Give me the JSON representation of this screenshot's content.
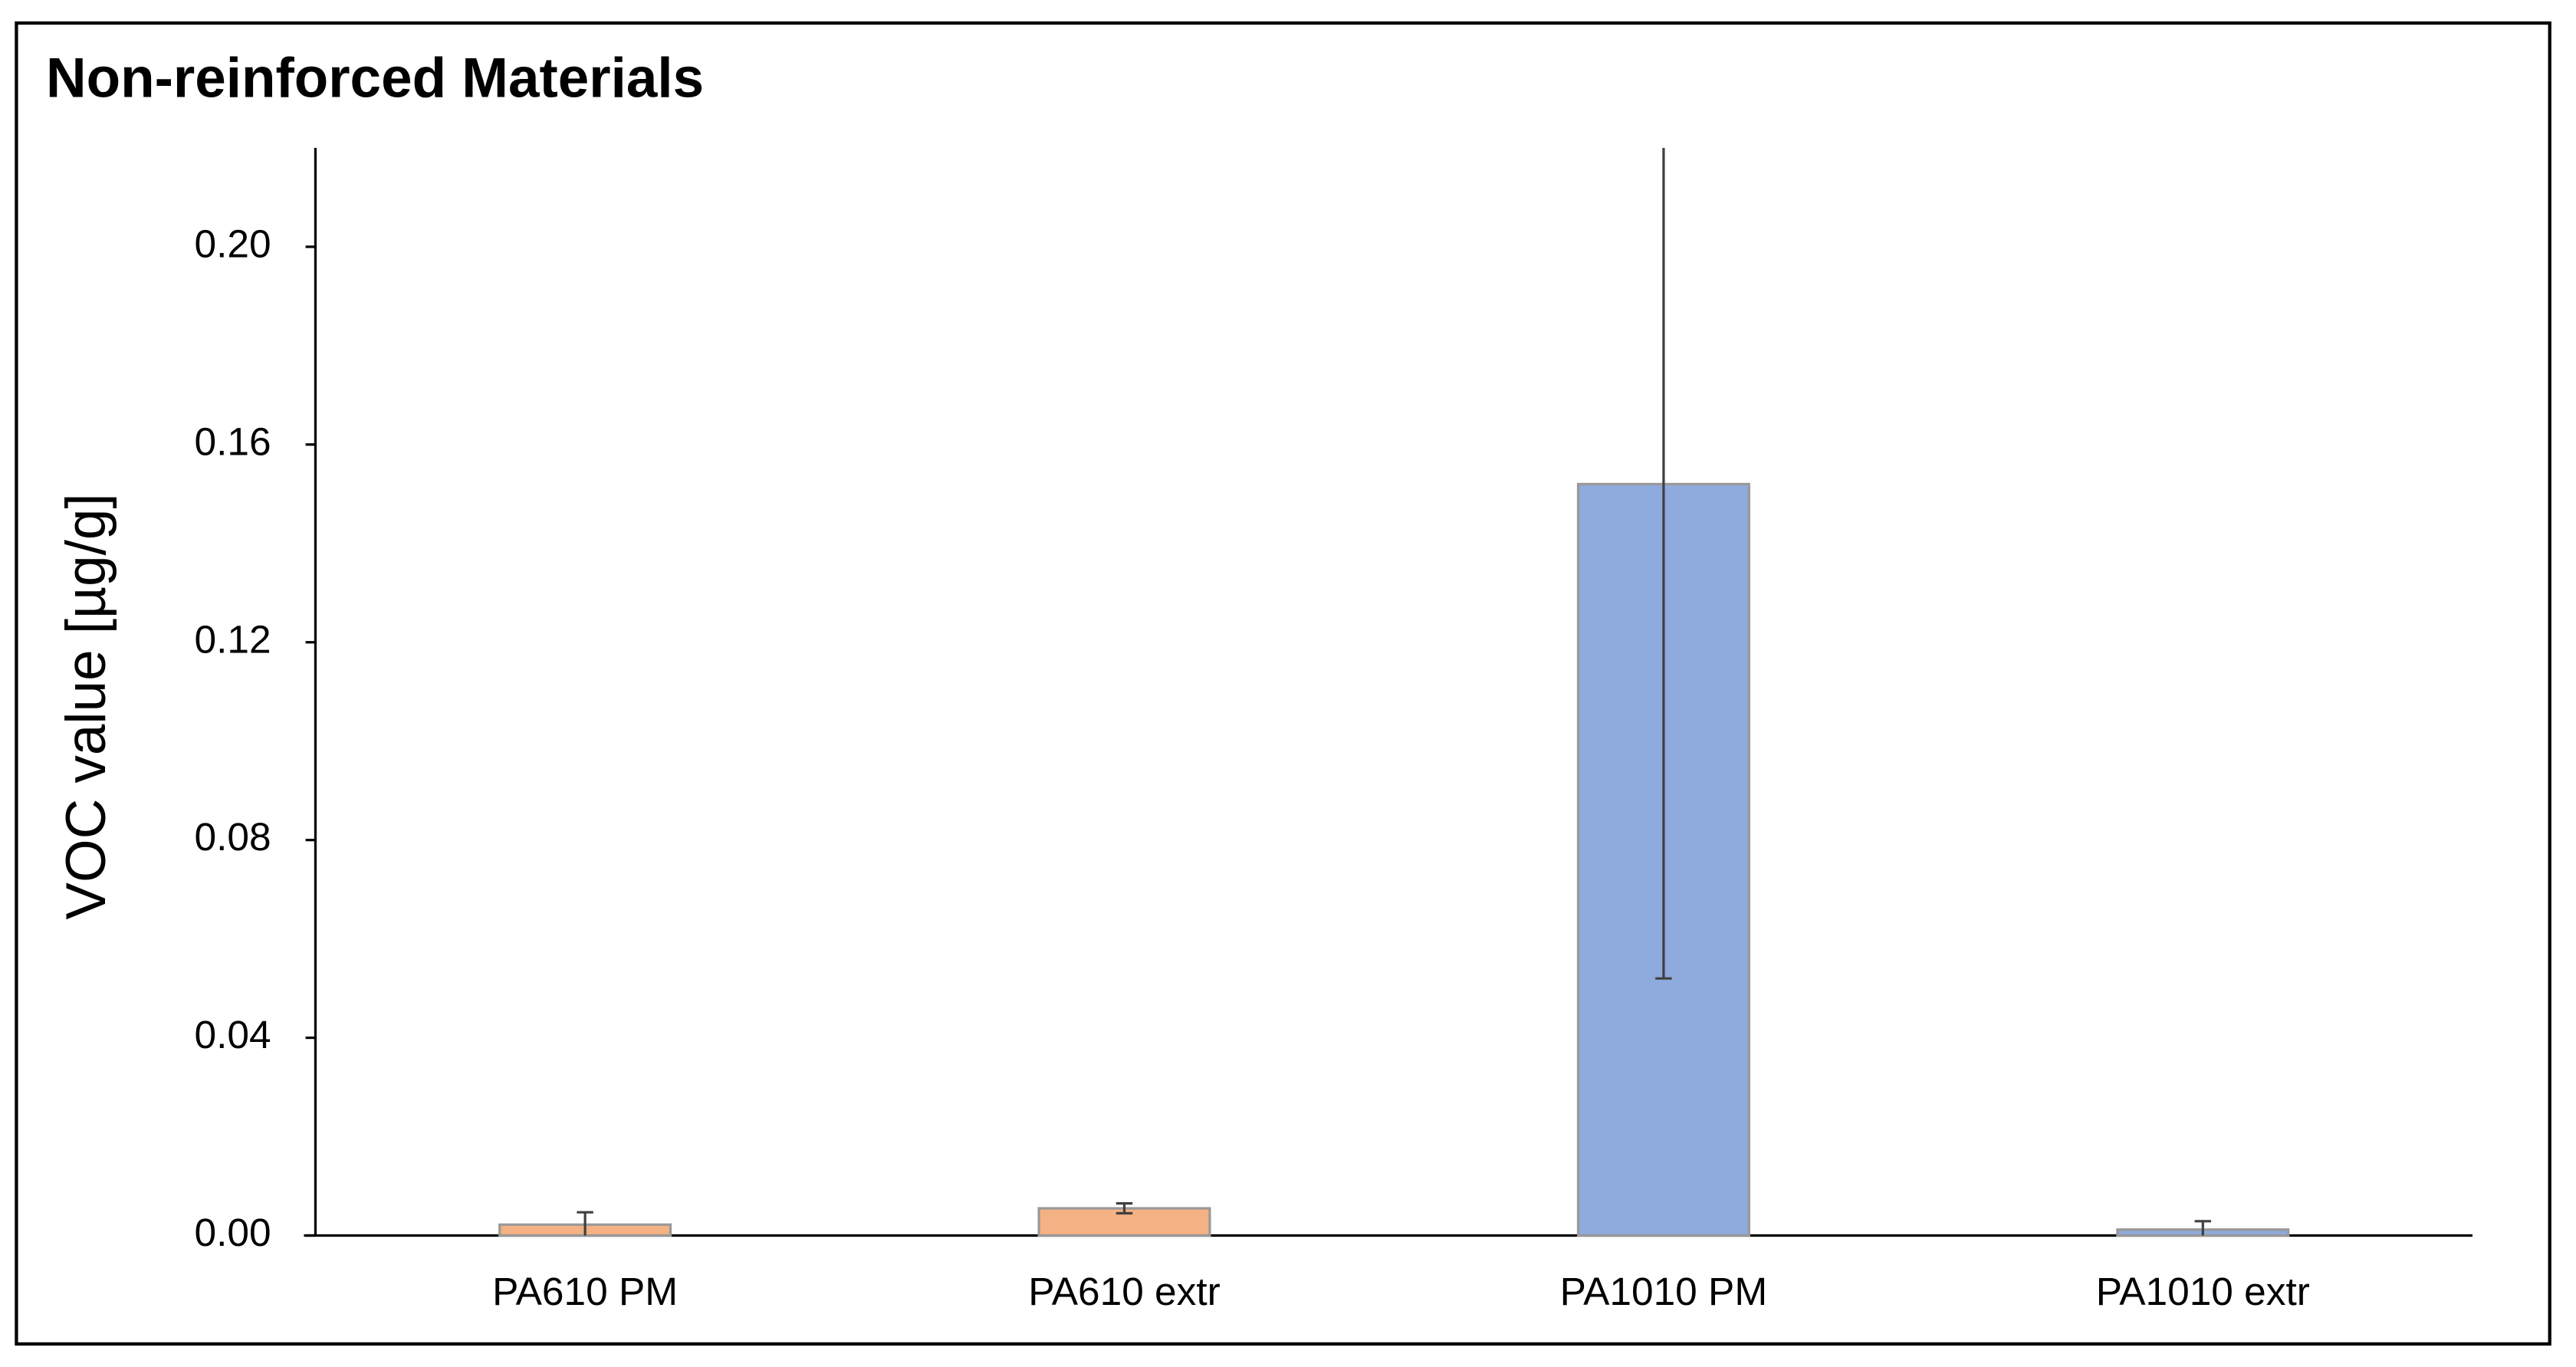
{
  "chart_data": {
    "type": "bar",
    "title": "Non-reinforced Materials",
    "y_label": "VOC value  [µg/g]",
    "categories": [
      "PA610 PM",
      "PA610 extr",
      "PA1010 PM",
      "PA1010 extr"
    ],
    "values": [
      0.0022,
      0.0055,
      0.152,
      0.0012
    ],
    "errors": [
      0.0025,
      0.001,
      0.1,
      0.0017
    ],
    "colors": [
      "#f4b183",
      "#f4b183",
      "#8faadc",
      "#8faadc"
    ],
    "ylim": [
      0,
      0.22
    ],
    "yticks": [
      {
        "value": 0,
        "label": "0.00"
      },
      {
        "value": 0.04,
        "label": "0.04"
      },
      {
        "value": 0.08,
        "label": "0.08"
      },
      {
        "value": 0.12,
        "label": "0.12"
      },
      {
        "value": 0.16,
        "label": "0.16"
      },
      {
        "value": 0.2,
        "label": "0.20"
      }
    ],
    "grid": false
  }
}
